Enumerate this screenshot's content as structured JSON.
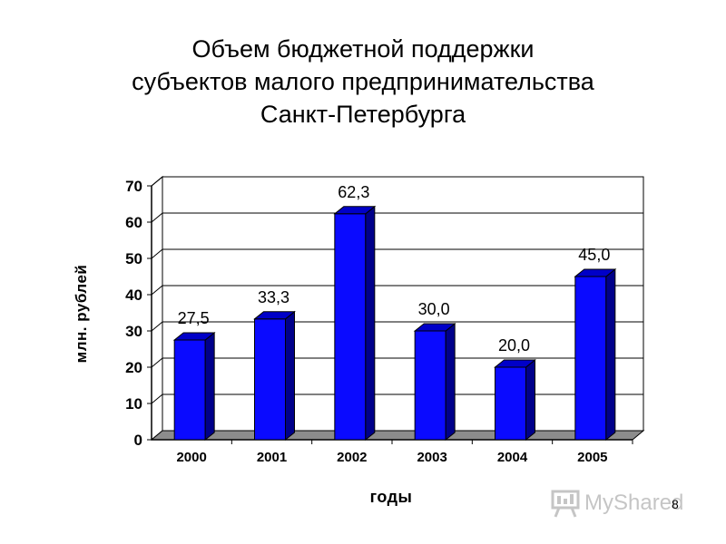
{
  "title_lines": [
    "Объем бюджетной поддержки",
    "субъектов малого предпринимательства",
    "Санкт-Петербурга"
  ],
  "chart_data": {
    "type": "bar",
    "title": "Объем бюджетной поддержки субъектов малого предпринимательства Санкт-Петербурга",
    "categories": [
      "2000",
      "2001",
      "2002",
      "2003",
      "2004",
      "2005"
    ],
    "values": [
      27.5,
      33.3,
      62.3,
      30.0,
      20.0,
      45.0
    ],
    "value_labels": [
      "27,5",
      "33,3",
      "62,3",
      "30,0",
      "20,0",
      "45,0"
    ],
    "xlabel": "годы",
    "ylabel": "млн. рублей",
    "ylim": [
      0,
      70
    ],
    "yticks": [
      0,
      10,
      20,
      30,
      40,
      50,
      60,
      70
    ],
    "grid": true,
    "legend": "none",
    "bar_color": "#0a0aff",
    "bar_side_color": "#00008a",
    "bar_top_color": "#0000c8",
    "floor_color": "#8c8c8c"
  },
  "watermark": {
    "text": "MyShared",
    "icon": "presentation-board-icon"
  },
  "page_number": "8"
}
